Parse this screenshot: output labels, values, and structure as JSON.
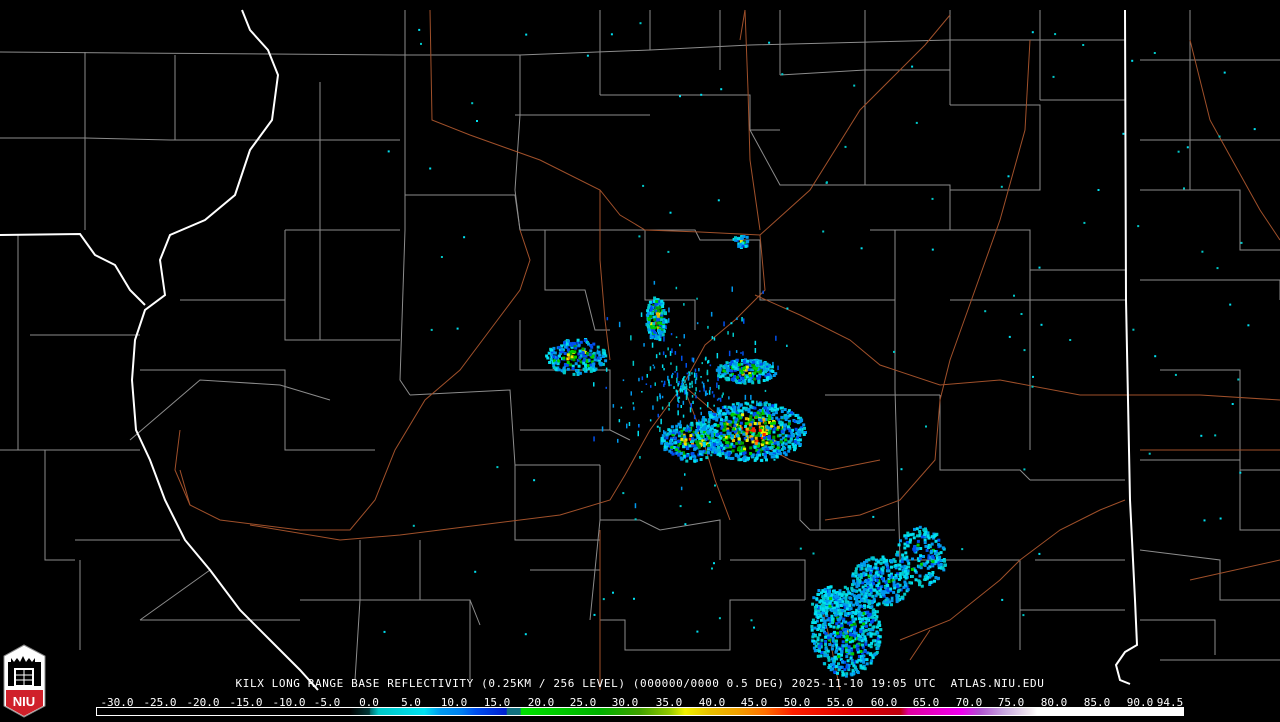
{
  "product_title": "KILX LONG RANGE BASE REFLECTIVITY (0.25KM / 256 LEVEL) (000000/0000 0.5 DEG) 2025-11-10 19:05 UTC  ATLAS.NIU.EDU",
  "logo": {
    "text": "NIU",
    "color": "#d0202a"
  },
  "colorbar": {
    "unit_labels": [
      "-30.0",
      "-25.0",
      "-20.0",
      "-15.0",
      "-10.0",
      "-5.0",
      "0.0",
      "5.0",
      "10.0",
      "15.0",
      "20.0",
      "25.0",
      "30.0",
      "35.0",
      "40.0",
      "45.0",
      "50.0",
      "55.0",
      "60.0",
      "65.0",
      "70.0",
      "75.0",
      "80.0",
      "85.0",
      "90.0",
      "94.5"
    ],
    "colors": {
      "low": "#000000",
      "teal": "#00c8c8",
      "cyan": "#00e0f0",
      "light_blue": "#0099ee",
      "blue": "#0030e0",
      "green": "#00d000",
      "dark_green": "#00a000",
      "yellow": "#f0f000",
      "gold": "#e8b800",
      "orange": "#ff8000",
      "red": "#ff0000",
      "dark_red": "#c80000",
      "magenta": "#ff00ff",
      "purple": "#b050d0",
      "light_purple": "#c8a8e0",
      "white": "#ffffff"
    }
  },
  "map_colors": {
    "state_border": "#ffffff",
    "county_border": "#8c8c8c",
    "highway": "#a0502a",
    "background": "#000000"
  }
}
